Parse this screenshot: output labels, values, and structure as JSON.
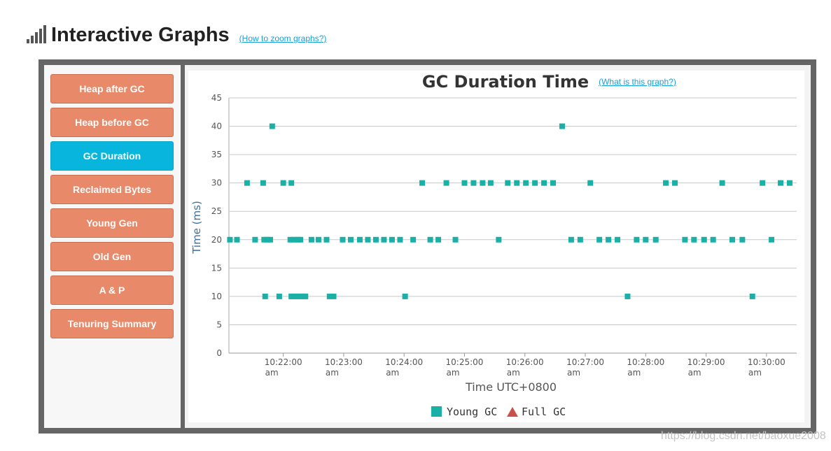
{
  "header": {
    "title": "Interactive Graphs",
    "help_link": "(How to zoom graphs?)"
  },
  "sidebar": {
    "items": [
      {
        "label": "Heap after GC",
        "active": false
      },
      {
        "label": "Heap before GC",
        "active": false
      },
      {
        "label": "GC Duration",
        "active": true
      },
      {
        "label": "Reclaimed Bytes",
        "active": false
      },
      {
        "label": "Young Gen",
        "active": false
      },
      {
        "label": "Old Gen",
        "active": false
      },
      {
        "label": "A & P",
        "active": false
      },
      {
        "label": "Tenuring Summary",
        "active": false
      }
    ]
  },
  "chart_link": "(What is this graph?)",
  "watermark": "https://blog.csdn.net/baoxue2008",
  "colors": {
    "young_gc": "#1ab0a6",
    "full_gc": "#c9504b",
    "active_tab": "#08b6dd",
    "tab": "#e8896a"
  },
  "chart_data": {
    "type": "scatter",
    "title": "GC Duration Time",
    "xlabel": "Time UTC+0800",
    "ylabel": "Time (ms)",
    "ylim": [
      0,
      45
    ],
    "y_ticks": [
      0,
      5,
      10,
      15,
      20,
      25,
      30,
      35,
      40,
      45
    ],
    "xlim": [
      "10:21:06",
      "10:30:30"
    ],
    "x_ticks": [
      {
        "t": "10:22:00",
        "line1": "10:22:00",
        "line2": "am"
      },
      {
        "t": "10:23:00",
        "line1": "10:23:00",
        "line2": "am"
      },
      {
        "t": "10:24:00",
        "line1": "10:24:00",
        "line2": "am"
      },
      {
        "t": "10:25:00",
        "line1": "10:25:00",
        "line2": "am"
      },
      {
        "t": "10:26:00",
        "line1": "10:26:00",
        "line2": "am"
      },
      {
        "t": "10:27:00",
        "line1": "10:27:00",
        "line2": "am"
      },
      {
        "t": "10:28:00",
        "line1": "10:28:00",
        "line2": "am"
      },
      {
        "t": "10:29:00",
        "line1": "10:29:00",
        "line2": "am"
      },
      {
        "t": "10:30:00",
        "line1": "10:30:00",
        "line2": "am"
      }
    ],
    "grid": true,
    "legend_position": "bottom-center",
    "series": [
      {
        "name": "Young GC",
        "marker": "square",
        "points": [
          [
            "10:21:07",
            20
          ],
          [
            "10:21:14",
            20
          ],
          [
            "10:21:24",
            30
          ],
          [
            "10:21:32",
            20
          ],
          [
            "10:21:40",
            30
          ],
          [
            "10:21:41",
            20
          ],
          [
            "10:21:42",
            10
          ],
          [
            "10:21:44",
            20
          ],
          [
            "10:21:47",
            20
          ],
          [
            "10:21:49",
            40
          ],
          [
            "10:21:56",
            10
          ],
          [
            "10:22:00",
            30
          ],
          [
            "10:22:07",
            20
          ],
          [
            "10:22:08",
            30
          ],
          [
            "10:22:08",
            10
          ],
          [
            "10:22:11",
            20
          ],
          [
            "10:22:11",
            10
          ],
          [
            "10:22:14",
            20
          ],
          [
            "10:22:14",
            10
          ],
          [
            "10:22:17",
            20
          ],
          [
            "10:22:17",
            10
          ],
          [
            "10:22:20",
            10
          ],
          [
            "10:22:22",
            10
          ],
          [
            "10:22:28",
            20
          ],
          [
            "10:22:35",
            20
          ],
          [
            "10:22:43",
            20
          ],
          [
            "10:22:46",
            10
          ],
          [
            "10:22:50",
            10
          ],
          [
            "10:22:59",
            20
          ],
          [
            "10:23:07",
            20
          ],
          [
            "10:23:16",
            20
          ],
          [
            "10:23:24",
            20
          ],
          [
            "10:23:32",
            20
          ],
          [
            "10:23:40",
            20
          ],
          [
            "10:23:48",
            20
          ],
          [
            "10:23:56",
            20
          ],
          [
            "10:24:01",
            10
          ],
          [
            "10:24:09",
            20
          ],
          [
            "10:24:18",
            30
          ],
          [
            "10:24:26",
            20
          ],
          [
            "10:24:34",
            20
          ],
          [
            "10:24:42",
            30
          ],
          [
            "10:24:51",
            20
          ],
          [
            "10:25:00",
            30
          ],
          [
            "10:25:09",
            30
          ],
          [
            "10:25:18",
            30
          ],
          [
            "10:25:26",
            30
          ],
          [
            "10:25:34",
            20
          ],
          [
            "10:25:43",
            30
          ],
          [
            "10:25:52",
            30
          ],
          [
            "10:26:01",
            30
          ],
          [
            "10:26:10",
            30
          ],
          [
            "10:26:19",
            30
          ],
          [
            "10:26:28",
            30
          ],
          [
            "10:26:37",
            40
          ],
          [
            "10:26:46",
            20
          ],
          [
            "10:26:55",
            20
          ],
          [
            "10:27:05",
            30
          ],
          [
            "10:27:14",
            20
          ],
          [
            "10:27:23",
            20
          ],
          [
            "10:27:32",
            20
          ],
          [
            "10:27:42",
            10
          ],
          [
            "10:27:51",
            20
          ],
          [
            "10:28:00",
            20
          ],
          [
            "10:28:10",
            20
          ],
          [
            "10:28:20",
            30
          ],
          [
            "10:28:29",
            30
          ],
          [
            "10:28:39",
            20
          ],
          [
            "10:28:48",
            20
          ],
          [
            "10:28:58",
            20
          ],
          [
            "10:29:07",
            20
          ],
          [
            "10:29:16",
            30
          ],
          [
            "10:29:26",
            20
          ],
          [
            "10:29:36",
            20
          ],
          [
            "10:29:46",
            10
          ],
          [
            "10:29:56",
            30
          ],
          [
            "10:30:05",
            20
          ],
          [
            "10:30:14",
            30
          ],
          [
            "10:30:23",
            30
          ]
        ]
      },
      {
        "name": "Full GC",
        "marker": "triangle",
        "points": []
      }
    ]
  }
}
